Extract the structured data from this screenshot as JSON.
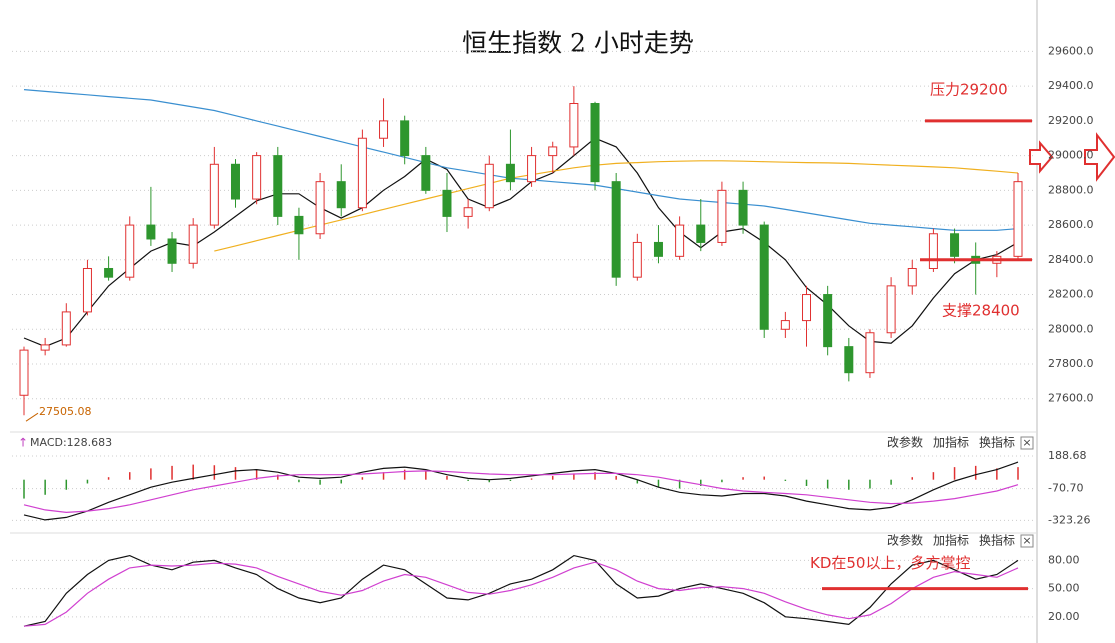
{
  "chart_data": [
    {
      "type": "candlestick",
      "title": "恒生指数 2 小时走势",
      "open": [
        27620,
        27880,
        27910,
        28100,
        28350,
        28300,
        28600,
        28520,
        28380,
        28600,
        28950,
        28750,
        29000,
        28650,
        28550,
        28850,
        28700,
        29100,
        29200,
        29000,
        28800,
        28650,
        28700,
        28950,
        28850,
        29000,
        29050,
        29300,
        28850,
        28300,
        28500,
        28420,
        28600,
        28500,
        28800,
        28600,
        28000,
        28050,
        28200,
        27900,
        27750,
        27980,
        28250,
        28350,
        28550,
        28420,
        28380,
        28420
      ],
      "high": [
        27900,
        27950,
        28150,
        28400,
        28420,
        28650,
        28820,
        28560,
        28640,
        29050,
        28980,
        29020,
        29050,
        28700,
        28900,
        28950,
        29150,
        29330,
        29230,
        29050,
        28900,
        28750,
        29000,
        29150,
        29050,
        29080,
        29400,
        29310,
        28900,
        28550,
        28600,
        28650,
        28750,
        28850,
        28850,
        28620,
        28100,
        28250,
        28250,
        27950,
        28000,
        28300,
        28400,
        28580,
        28580,
        28500,
        28450,
        28900
      ],
      "low": [
        27505.08,
        27850,
        27900,
        28080,
        28280,
        28280,
        28480,
        28330,
        28350,
        28580,
        28700,
        28720,
        28600,
        28400,
        28520,
        28650,
        28680,
        29050,
        28950,
        28780,
        28560,
        28580,
        28680,
        28800,
        28820,
        28900,
        29000,
        28800,
        28250,
        28280,
        28380,
        28400,
        28450,
        28480,
        28550,
        27950,
        27950,
        27900,
        27850,
        27700,
        27720,
        27950,
        28200,
        28330,
        28380,
        28200,
        28300,
        28400
      ],
      "close": [
        27880,
        27910,
        28100,
        28350,
        28300,
        28600,
        28520,
        28380,
        28600,
        28950,
        28750,
        29000,
        28650,
        28550,
        28850,
        28700,
        29100,
        29200,
        29000,
        28800,
        28650,
        28700,
        28950,
        28850,
        29000,
        29050,
        29300,
        28850,
        28300,
        28500,
        28420,
        28600,
        28500,
        28800,
        28600,
        28000,
        28050,
        28200,
        27900,
        27750,
        27980,
        28250,
        28350,
        28550,
        28420,
        28380,
        28420,
        28850
      ],
      "up_color": "#e03030",
      "down_color": "#2e962e",
      "series": [
        {
          "color": "#111111",
          "values": [
            27950,
            27900,
            27950,
            28100,
            28250,
            28350,
            28450,
            28500,
            28480,
            28560,
            28650,
            28740,
            28780,
            28780,
            28700,
            28640,
            28700,
            28800,
            28880,
            28980,
            28920,
            28750,
            28700,
            28750,
            28850,
            28900,
            29000,
            29100,
            29050,
            28900,
            28700,
            28560,
            28470,
            28560,
            28580,
            28500,
            28400,
            28240,
            28140,
            28020,
            27930,
            27920,
            28020,
            28180,
            28320,
            28400,
            28430,
            28500
          ]
        },
        {
          "color": "#3a8fd0",
          "values": [
            29380,
            29370,
            29360,
            29350,
            29340,
            29330,
            29320,
            29300,
            29280,
            29260,
            29230,
            29200,
            29170,
            29140,
            29110,
            29080,
            29050,
            29020,
            28990,
            28960,
            28930,
            28910,
            28890,
            28870,
            28860,
            28850,
            28840,
            28830,
            28810,
            28790,
            28770,
            28750,
            28740,
            28730,
            28720,
            28710,
            28690,
            28670,
            28650,
            28630,
            28610,
            28600,
            28590,
            28580,
            28570,
            28570,
            28570,
            28580
          ]
        },
        {
          "color": "#f0b020",
          "values": [
            null,
            null,
            null,
            null,
            null,
            null,
            null,
            null,
            null,
            28450,
            28480,
            28510,
            28540,
            28570,
            28600,
            28630,
            28660,
            28690,
            28720,
            28750,
            28780,
            28810,
            28840,
            28870,
            28890,
            28910,
            28930,
            28945,
            28955,
            28960,
            28965,
            28968,
            28970,
            28970,
            28968,
            28965,
            28962,
            28960,
            28958,
            28955,
            28950,
            28945,
            28940,
            28935,
            28930,
            28920,
            28910,
            28900
          ]
        }
      ],
      "ylim": [
        27420,
        29850
      ],
      "yticks": [
        {
          "value": 27600,
          "label": "27600.0"
        },
        {
          "value": 27800,
          "label": "27800.0"
        },
        {
          "value": 28000,
          "label": "28000.0"
        },
        {
          "value": 28200,
          "label": "28200.0"
        },
        {
          "value": 28400,
          "label": "28400.0"
        },
        {
          "value": 28600,
          "label": "28600.0"
        },
        {
          "value": 28800,
          "label": "28800.0"
        },
        {
          "value": 29000,
          "label": "29000.0"
        },
        {
          "value": 29200,
          "label": "29200.0"
        },
        {
          "value": 29400,
          "label": "29400.0"
        },
        {
          "value": 29600,
          "label": "29600.0"
        }
      ],
      "grid": true,
      "levels": [
        {
          "label": "压力29200",
          "value": 29200,
          "color": "#e03030"
        },
        {
          "label": "支撑28400",
          "value": 28400,
          "color": "#e03030"
        }
      ]
    },
    {
      "type": "macd",
      "label": "MACD:128.683",
      "buttons": [
        "改参数",
        "加指标",
        "换指标"
      ],
      "values": [
        -150,
        -120,
        -80,
        -30,
        20,
        60,
        90,
        110,
        120,
        115,
        100,
        80,
        40,
        -20,
        -40,
        -30,
        20,
        60,
        80,
        70,
        30,
        -10,
        -20,
        -10,
        10,
        30,
        50,
        60,
        30,
        -30,
        -60,
        -70,
        -50,
        -20,
        20,
        25,
        -10,
        -50,
        -70,
        -80,
        -70,
        -40,
        20,
        60,
        100,
        110,
        90,
        100
      ],
      "up_color": "#e03030",
      "down_color": "#2e962e",
      "series": [
        {
          "color": "#111111",
          "values": [
            -280,
            -320,
            -300,
            -250,
            -180,
            -120,
            -60,
            -20,
            10,
            40,
            70,
            80,
            60,
            20,
            10,
            20,
            60,
            90,
            100,
            80,
            40,
            10,
            0,
            10,
            30,
            50,
            70,
            80,
            50,
            0,
            -60,
            -100,
            -120,
            -130,
            -110,
            -110,
            -130,
            -170,
            -200,
            -230,
            -240,
            -220,
            -160,
            -80,
            -10,
            40,
            80,
            140
          ]
        },
        {
          "color": "#d040d0",
          "values": [
            -200,
            -240,
            -260,
            -250,
            -230,
            -200,
            -160,
            -120,
            -80,
            -50,
            -20,
            10,
            30,
            40,
            40,
            40,
            45,
            55,
            65,
            70,
            65,
            55,
            45,
            40,
            40,
            40,
            45,
            50,
            50,
            40,
            20,
            -10,
            -40,
            -70,
            -90,
            -100,
            -110,
            -120,
            -140,
            -160,
            -180,
            -190,
            -185,
            -170,
            -150,
            -120,
            -90,
            -40
          ]
        }
      ],
      "ylim": [
        -400,
        260
      ],
      "yticks": [
        188.68,
        {
          "value": -70.7,
          "label": "-70.70"
        },
        -323.26
      ]
    },
    {
      "type": "kd",
      "buttons": [
        "改参数",
        "加指标",
        "换指标"
      ],
      "annotation": "KD在50以上，多方掌控",
      "level": 50,
      "level_color": "#e03030",
      "series": [
        {
          "color": "#111111",
          "values": [
            10,
            15,
            45,
            65,
            80,
            85,
            75,
            70,
            78,
            80,
            72,
            65,
            50,
            40,
            35,
            40,
            60,
            75,
            70,
            55,
            40,
            38,
            45,
            55,
            60,
            70,
            85,
            80,
            55,
            40,
            42,
            50,
            55,
            50,
            45,
            35,
            20,
            18,
            15,
            12,
            30,
            55,
            75,
            80,
            70,
            60,
            65,
            80
          ]
        },
        {
          "color": "#d040d0",
          "values": [
            10,
            12,
            25,
            45,
            60,
            72,
            75,
            74,
            75,
            77,
            76,
            72,
            63,
            55,
            47,
            43,
            48,
            58,
            65,
            62,
            54,
            46,
            44,
            48,
            54,
            62,
            72,
            78,
            70,
            58,
            50,
            48,
            51,
            52,
            50,
            45,
            36,
            28,
            22,
            18,
            22,
            34,
            50,
            62,
            68,
            65,
            62,
            72
          ]
        }
      ],
      "ylim": [
        6,
        91
      ],
      "yticks": [
        {
          "value": 80,
          "label": "80.00"
        },
        {
          "value": 50,
          "label": "50.00"
        },
        {
          "value": 20,
          "label": "20.00"
        }
      ]
    }
  ]
}
